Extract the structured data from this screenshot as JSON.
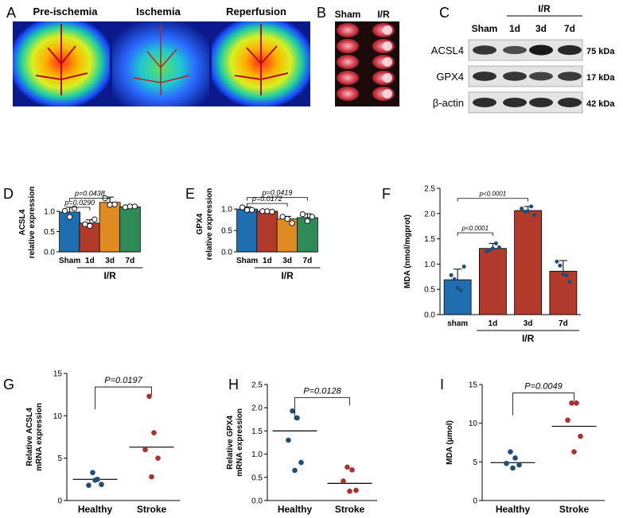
{
  "panel_letters": [
    "A",
    "B",
    "C",
    "D",
    "E",
    "F",
    "G",
    "H",
    "I"
  ],
  "panel_a": {
    "labels": [
      "Pre-ischemia",
      "Ischemia",
      "Reperfusion"
    ]
  },
  "panel_b": {
    "headers": [
      "Sham",
      "I/R"
    ],
    "slice_count": 5
  },
  "panel_c": {
    "group_label": "I/R",
    "lanes": [
      "Sham",
      "1d",
      "3d",
      "7d"
    ],
    "blots": [
      {
        "name": "ACSL4",
        "kda": "75 kDa"
      },
      {
        "name": "GPX4",
        "kda": "17 kDa"
      },
      {
        "name": "β-actin",
        "kda": "42 kDa"
      }
    ]
  },
  "colors": {
    "blue": "#1f6fb0",
    "red": "#b23a2b",
    "orange": "#e08a22",
    "green": "#2e8b57",
    "marker": "#1f4e79",
    "marker2": "#a8322d"
  },
  "chart_data": [
    {
      "id": "D",
      "type": "bar",
      "categories": [
        "Sham",
        "1d",
        "3d",
        "7d"
      ],
      "values": [
        0.98,
        0.71,
        1.22,
        1.11
      ],
      "errors": [
        0.12,
        0.08,
        0.13,
        0.02
      ],
      "points": [
        [
          1.01,
          0.86,
          1.07
        ],
        [
          0.68,
          0.64,
          0.8
        ],
        [
          1.32,
          1.16,
          1.17
        ],
        [
          1.1,
          1.12,
          1.12
        ]
      ],
      "bar_colors": [
        "blue",
        "red",
        "orange",
        "green"
      ],
      "ylabel": "ACSL4 relative expression",
      "ylabel_lines": [
        "ACSL4",
        "relative expression"
      ],
      "yticks": [
        0.0,
        0.5,
        1.0
      ],
      "ylim": [
        0,
        1.45
      ],
      "group_label": "I/R",
      "comparisons": [
        {
          "from": 0,
          "to": 1,
          "label": "p=0.0290",
          "y": 1.1
        },
        {
          "from": 0,
          "to": 2,
          "label": "p=0.0438",
          "y": 1.32
        }
      ]
    },
    {
      "id": "E",
      "type": "bar",
      "categories": [
        "Sham",
        "1d",
        "3d",
        "7d"
      ],
      "values": [
        1.0,
        0.95,
        0.77,
        0.8
      ],
      "errors": [
        0.05,
        0.02,
        0.06,
        0.09
      ],
      "points": [
        [
          1.04,
          0.98,
          0.98
        ],
        [
          0.95,
          0.95,
          0.94
        ],
        [
          0.82,
          0.77,
          0.67
        ],
        [
          0.88,
          0.72,
          0.82
        ]
      ],
      "bar_colors": [
        "blue",
        "red",
        "orange",
        "green"
      ],
      "ylabel": "GPX4 relative expression",
      "ylabel_lines": [
        "GPX4",
        "relative expression"
      ],
      "yticks": [
        0.0,
        0.5,
        1.0
      ],
      "ylim": [
        0,
        1.3
      ],
      "group_label": "I/R",
      "comparisons": [
        {
          "from": 0,
          "to": 2,
          "label": "p=0.0172",
          "y": 1.13
        },
        {
          "from": 0,
          "to": 3,
          "label": "p=0.0419",
          "y": 1.27
        }
      ]
    },
    {
      "id": "F",
      "type": "bar",
      "categories": [
        "sham",
        "1d",
        "3d",
        "7d"
      ],
      "values": [
        0.69,
        1.31,
        2.06,
        0.86
      ],
      "errors": [
        0.21,
        0.1,
        0.08,
        0.21
      ],
      "points": [
        [
          0.78,
          0.7,
          0.53,
          0.48,
          0.95
        ],
        [
          1.25,
          1.28,
          1.31,
          1.41,
          1.33
        ],
        [
          2.1,
          2.04,
          2.05,
          2.14,
          1.97
        ],
        [
          1.05,
          0.97,
          0.8,
          0.78,
          0.65
        ]
      ],
      "bar_colors": [
        "blue",
        "red",
        "red",
        "red"
      ],
      "ylabel": "MDA (nmol/mgprot)",
      "yticks": [
        0.0,
        0.5,
        1.0,
        1.5,
        2.0,
        2.5
      ],
      "ylim": [
        0,
        2.5
      ],
      "group_label": "I/R",
      "comparisons": [
        {
          "from": 0,
          "to": 1,
          "label": "p<0.0001",
          "y": 1.62
        },
        {
          "from": 0,
          "to": 2,
          "label": "p<0.0001",
          "y": 2.3
        }
      ]
    },
    {
      "id": "G",
      "type": "scatter",
      "categories": [
        "Healthy",
        "Stroke"
      ],
      "points": [
        [
          3.3,
          2.5,
          1.8,
          1.9,
          2.4
        ],
        [
          12.3,
          8.0,
          6.0,
          5.0,
          2.8
        ]
      ],
      "means": [
        2.5,
        6.3
      ],
      "point_colors": [
        "marker",
        "marker2"
      ],
      "ylabel": "Relative ACSL4 mRNA expression",
      "ylabel_lines": [
        "Relative ACSL4",
        "mRNA expression"
      ],
      "yticks": [
        0,
        5,
        10,
        15
      ],
      "ylim": [
        0,
        15
      ],
      "comparison": {
        "label": "P=0.0197",
        "y": 13.4
      }
    },
    {
      "id": "H",
      "type": "scatter",
      "categories": [
        "Healthy",
        "Stroke"
      ],
      "points": [
        [
          1.93,
          1.78,
          1.3,
          0.82,
          0.65
        ],
        [
          0.72,
          0.66,
          0.42,
          0.22,
          0.2
        ]
      ],
      "means": [
        1.5,
        0.37
      ],
      "point_colors": [
        "marker",
        "marker2"
      ],
      "ylabel": "Relative GPX4 mRNA expression",
      "ylabel_lines": [
        "Relative GPX4",
        "mRNA expression"
      ],
      "yticks": [
        0.0,
        0.5,
        1.0,
        1.5,
        2.0,
        2.5
      ],
      "ylim": [
        0,
        2.5
      ],
      "comparison": {
        "label": "P=0.0128",
        "y": 2.22
      }
    },
    {
      "id": "I",
      "type": "scatter",
      "categories": [
        "Healthy",
        "Stroke"
      ],
      "points": [
        [
          6.3,
          5.5,
          4.8,
          4.6,
          4.2
        ],
        [
          12.6,
          12.6,
          10.4,
          8.3,
          6.3
        ]
      ],
      "means": [
        4.9,
        9.6
      ],
      "point_colors": [
        "marker",
        "marker2"
      ],
      "ylabel": "MDA (μmol)",
      "yticks": [
        0,
        5,
        10,
        15
      ],
      "ylim": [
        0,
        15
      ],
      "comparison": {
        "label": "P=0.0049",
        "y": 13.9
      }
    }
  ]
}
